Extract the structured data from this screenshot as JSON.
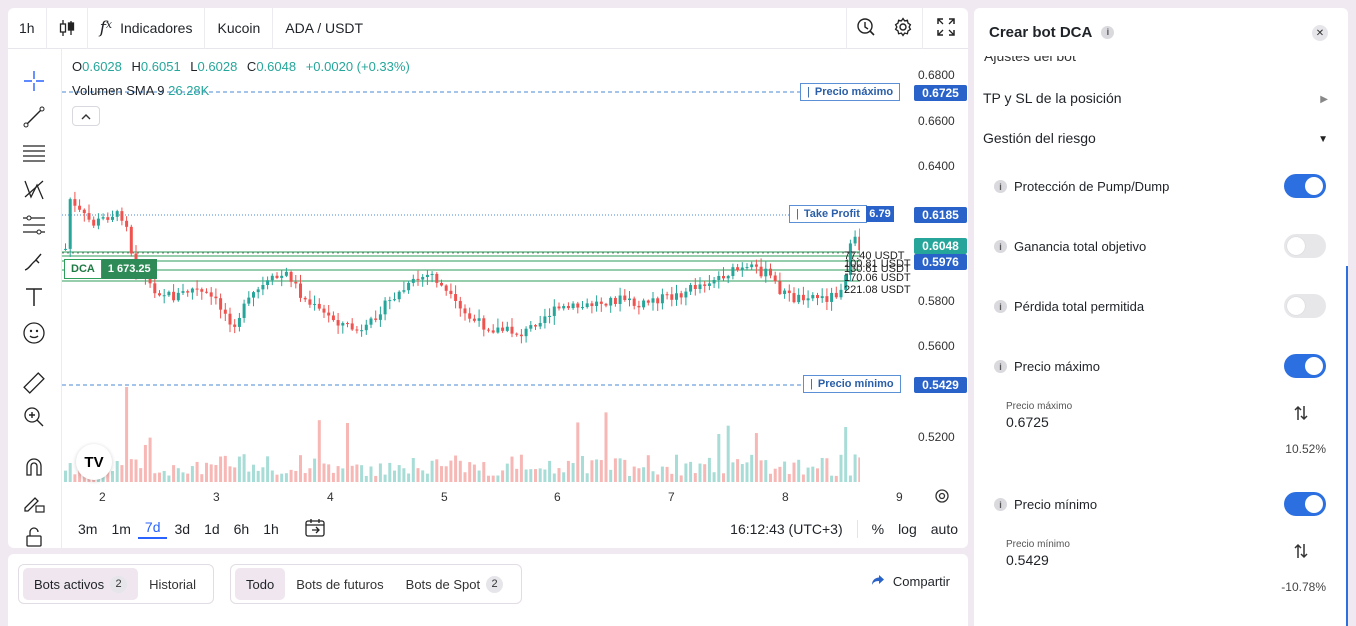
{
  "toolbar": {
    "interval": "1h",
    "indicators_label": "Indicadores",
    "exchange": "Kucoin",
    "pair": "ADA / USDT"
  },
  "legend": {
    "o_label": "O",
    "o_value": "0.6028",
    "h_label": "H",
    "h_value": "0.6051",
    "l_label": "L",
    "l_value": "0.6028",
    "c_label": "C",
    "c_value": "0.6048",
    "change": "+0.0020 (+0.33%)",
    "volume_label": "Volumen SMA 9",
    "volume_value": "26.28K"
  },
  "price_axis": {
    "ticks": [
      "0.6800",
      "0.6600",
      "0.6400",
      "0.5800",
      "0.5600",
      "0.5200"
    ],
    "labels": {
      "max_price": "0.6725",
      "take_profit": "0.6185",
      "current": "0.6048",
      "dca": "0.5976",
      "min_price": "0.5429"
    }
  },
  "overlays": {
    "max_price_tag": "Precio máximo",
    "min_price_tag": "Precio mínimo",
    "take_profit_tag": "Take Profit",
    "take_profit_value": "6.79",
    "dca_tag": "DCA",
    "dca_value": "1 673.25",
    "usdt_levels": [
      "77.40 USDT",
      "100.81 USDT",
      "130.61 USDT",
      "170.06 USDT",
      "221.08 USDT"
    ]
  },
  "time_axis": {
    "ticks": [
      "2",
      "3",
      "4",
      "5",
      "6",
      "7",
      "8",
      "9"
    ]
  },
  "bottombar": {
    "ranges": [
      "3m",
      "1m",
      "7d",
      "3d",
      "1d",
      "6h",
      "1h"
    ],
    "active_range": "7d",
    "clock": "16:12:43 (UTC+3)",
    "percent": "%",
    "log": "log",
    "auto": "auto"
  },
  "bots": {
    "active_label": "Bots activos",
    "active_count": "2",
    "history_label": "Historial",
    "all_label": "Todo",
    "futures_label": "Bots de futuros",
    "spot_label": "Bots de Spot",
    "spot_count": "2",
    "share_label": "Compartir"
  },
  "panel": {
    "title": "Crear bot DCA",
    "cut_section": "Ajustes del bot",
    "tp_sl_label": "TP y SL de la posición",
    "risk_label": "Gestión del riesgo",
    "options": [
      {
        "label": "Protección de Pump/Dump",
        "on": true
      },
      {
        "label": "Ganancia total objetivo",
        "on": false
      },
      {
        "label": "Pérdida total permitida",
        "on": false
      },
      {
        "label": "Precio máximo",
        "on": true
      },
      {
        "label": "Precio mínimo",
        "on": true
      }
    ],
    "max_price_field_label": "Precio máximo",
    "max_price_field_value": "0.6725",
    "max_price_pct": "10.52%",
    "min_price_field_label": "Precio mínimo",
    "min_price_field_value": "0.5429",
    "min_price_pct": "-10.78%"
  },
  "colors": {
    "up": "#26a69a",
    "down": "#ef5350",
    "accent": "#2962c8",
    "dca_green": "#2e8b57"
  },
  "icons": {
    "chart_type": "candles-icon",
    "indicators": "fx-icon",
    "alert": "alert-icon",
    "settings": "gear-icon",
    "fullscreen": "fullscreen-icon"
  }
}
